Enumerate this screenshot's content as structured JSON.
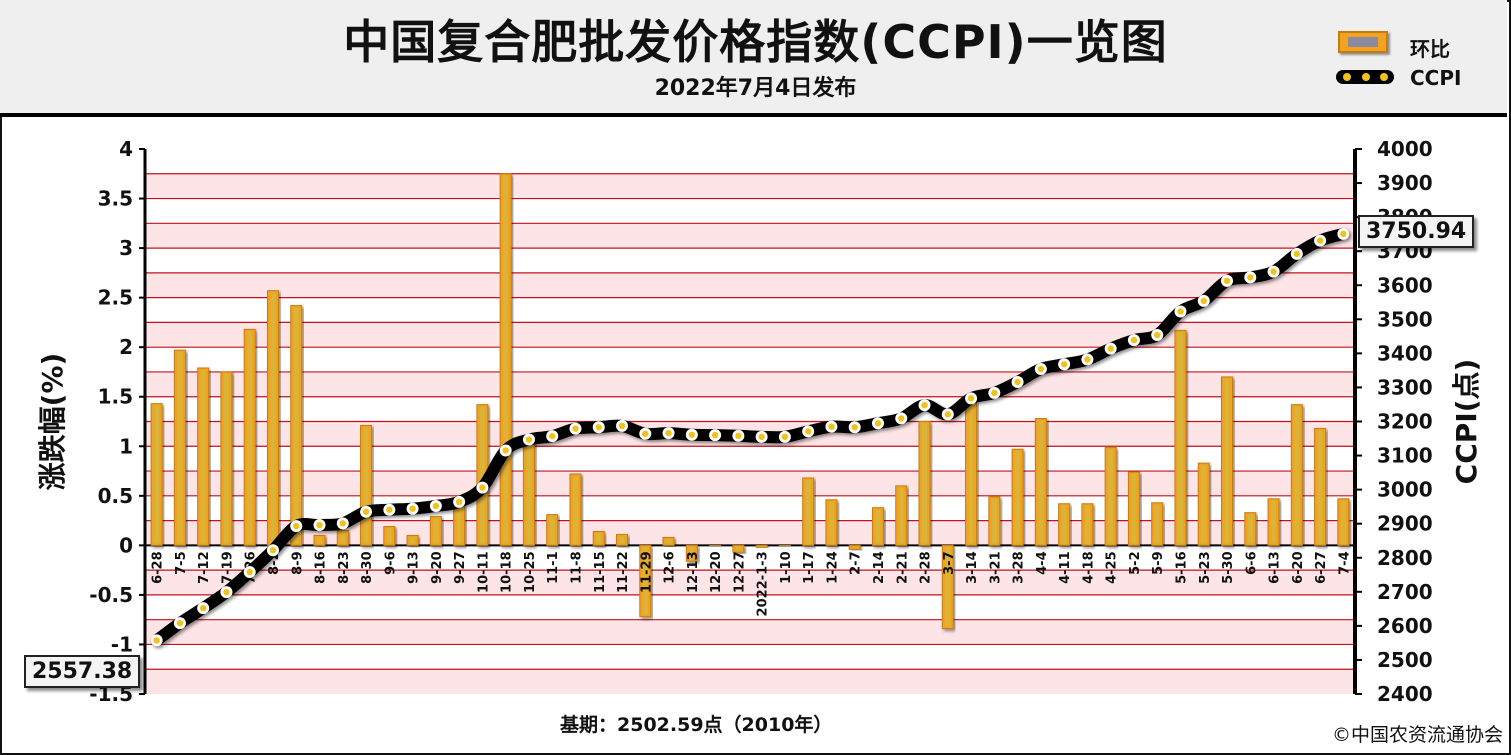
{
  "header": {
    "title": "中国复合肥批发价格指数(CCPI)一览图",
    "subtitle": "2022年7月4日发布"
  },
  "legend": {
    "bar_label": "环比",
    "line_label": "CCPI"
  },
  "footer": {
    "base": "基期：2502.59点（2010年）",
    "copyright": "©中国农资流通协会"
  },
  "callouts": {
    "start": "2557.38",
    "end": "3750.94"
  },
  "colors": {
    "bar": "#f3a21f",
    "bar_edge": "#c47d12",
    "bar_inner": "#d9b33a",
    "band": "#fde4e6",
    "grid": "#c0131c",
    "line": "#000000",
    "marker": "#f1c21b"
  },
  "chart_data": {
    "type": "bar+line",
    "title": "中国复合肥批发价格指数(CCPI)一览图",
    "subtitle": "2022年7月4日发布",
    "left_axis": {
      "label": "涨跌幅(%)",
      "range": [
        -1.5,
        4
      ],
      "ticks": [
        "4",
        "3.5",
        "3",
        "2.5",
        "2",
        "1.5",
        "1",
        "0.5",
        "0",
        "-0.5",
        "-1",
        "-1.5"
      ]
    },
    "right_axis": {
      "label": "CCPI(点)",
      "range": [
        2400,
        4000
      ],
      "ticks": [
        "4000",
        "3900",
        "3800",
        "3700",
        "3600",
        "3500",
        "3400",
        "3300",
        "3200",
        "3100",
        "3000",
        "2900",
        "2800",
        "2700",
        "2600",
        "2500",
        "2400"
      ]
    },
    "categories": [
      "6-28",
      "7-5",
      "7-12",
      "7-19",
      "7-26",
      "8-2",
      "8-9",
      "8-16",
      "8-23",
      "8-30",
      "9-6",
      "9-13",
      "9-20",
      "9-27",
      "10-11",
      "10-18",
      "10-25",
      "11-1",
      "11-8",
      "11-15",
      "11-22",
      "11-29",
      "12-6",
      "12-13",
      "12-20",
      "12-27",
      "2022-1-3",
      "1-10",
      "1-17",
      "1-24",
      "2-7",
      "2-14",
      "2-21",
      "2-28",
      "3-7",
      "3-14",
      "3-21",
      "3-28",
      "4-4",
      "4-11",
      "4-18",
      "4-25",
      "5-2",
      "5-9",
      "5-16",
      "5-23",
      "5-30",
      "6-6",
      "6-13",
      "6-20",
      "6-27",
      "7-4"
    ],
    "series": [
      {
        "name": "环比",
        "type": "bar",
        "axis": "left",
        "values": [
          1.43,
          1.97,
          1.79,
          1.75,
          2.18,
          2.57,
          2.42,
          0.1,
          0.15,
          1.21,
          0.19,
          0.1,
          0.29,
          0.4,
          1.42,
          3.75,
          1.07,
          0.31,
          0.72,
          0.14,
          0.11,
          -0.72,
          0.08,
          -0.16,
          0.0,
          -0.07,
          -0.02,
          0.0,
          0.68,
          0.46,
          -0.04,
          0.38,
          0.6,
          1.25,
          -0.84,
          1.45,
          0.49,
          0.97,
          1.28,
          0.42,
          0.42,
          0.99,
          0.74,
          0.43,
          2.17,
          0.83,
          1.7,
          0.33,
          0.47,
          1.42,
          1.18,
          0.47
        ]
      },
      {
        "name": "CCPI",
        "type": "line",
        "axis": "right",
        "values": [
          2557.38,
          2608,
          2652,
          2699,
          2758,
          2822,
          2893,
          2896,
          2901,
          2935,
          2941,
          2944,
          2952,
          2964,
          3006,
          3115,
          3147,
          3157,
          3179,
          3183,
          3187,
          3164,
          3166,
          3161,
          3160,
          3158,
          3155,
          3155,
          3171,
          3185,
          3183,
          3195,
          3209,
          3248,
          3221,
          3268,
          3284,
          3316,
          3354,
          3368,
          3382,
          3414,
          3439,
          3454,
          3523,
          3554,
          3613,
          3623,
          3640,
          3692,
          3731,
          3750.94
        ]
      }
    ]
  }
}
